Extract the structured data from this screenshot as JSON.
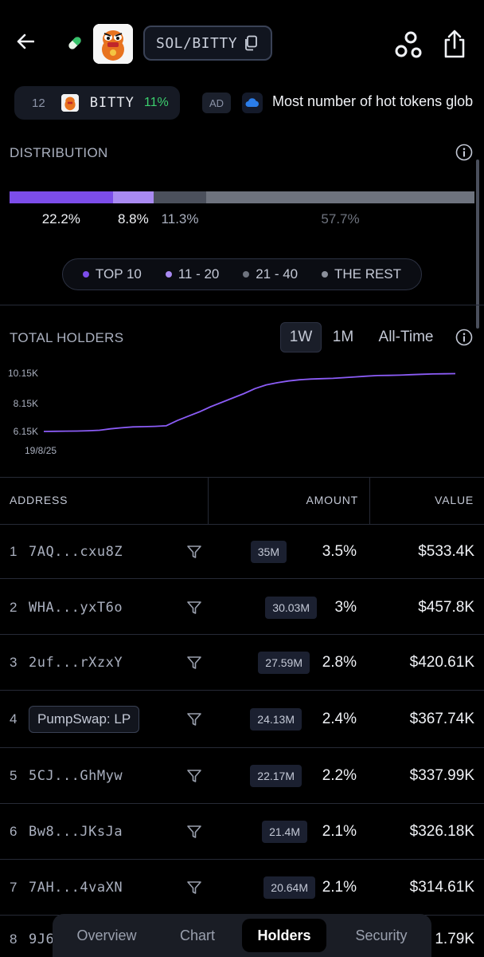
{
  "header": {
    "pair_label": "SOL/BITTY"
  },
  "ticker": {
    "rank": "12",
    "token": "BITTY",
    "change": "11%",
    "ad_label": "AD",
    "ad_text": "Most number of hot tokens glob"
  },
  "distribution": {
    "title": "DISTRIBUTION",
    "segments": [
      {
        "label": "TOP 10",
        "pct": "22.2%",
        "value": 22.2,
        "color": "#7c4dea"
      },
      {
        "label": "11 - 20",
        "pct": "8.8%",
        "value": 8.8,
        "color": "#a98af2"
      },
      {
        "label": "21 - 40",
        "pct": "11.3%",
        "value": 11.3,
        "color": "#4b505c"
      },
      {
        "label": "THE REST",
        "pct": "57.7%",
        "value": 57.7,
        "color": "#6e737e"
      }
    ]
  },
  "total_holders": {
    "title": "TOTAL HOLDERS",
    "ranges": [
      "1W",
      "1M",
      "All-Time"
    ],
    "active_range": "1W"
  },
  "chart_data": {
    "type": "line",
    "title": "TOTAL HOLDERS",
    "y_ticks": [
      "10.15K",
      "8.15K",
      "6.15K"
    ],
    "x_ticks": [
      "19/8/25"
    ],
    "ylim": [
      6150,
      10150
    ],
    "line_color": "#8b5cf6",
    "values": [
      6150,
      6160,
      6170,
      6180,
      6200,
      6230,
      6330,
      6400,
      6460,
      6480,
      6500,
      6540,
      6900,
      7200,
      7500,
      7850,
      8150,
      8450,
      8750,
      9100,
      9350,
      9500,
      9620,
      9700,
      9750,
      9780,
      9800,
      9850,
      9900,
      9950,
      9990,
      10000,
      10020,
      10050,
      10080,
      10100,
      10110,
      10120
    ]
  },
  "table": {
    "headers": {
      "address": "ADDRESS",
      "amount": "AMOUNT",
      "value": "VALUE"
    },
    "rows": [
      {
        "idx": "1",
        "address": "7AQ...cxu8Z",
        "amount": "35M",
        "pct": "3.5%",
        "value": "$533.4K"
      },
      {
        "idx": "2",
        "address": "WHA...yxT6o",
        "amount": "30.03M",
        "pct": "3%",
        "value": "$457.8K"
      },
      {
        "idx": "3",
        "address": "2uf...rXzxY",
        "amount": "27.59M",
        "pct": "2.8%",
        "value": "$420.61K"
      },
      {
        "idx": "4",
        "address": "PumpSwap: LP",
        "amount": "24.13M",
        "pct": "2.4%",
        "value": "$367.74K"
      },
      {
        "idx": "5",
        "address": "5CJ...GhMyw",
        "amount": "22.17M",
        "pct": "2.2%",
        "value": "$337.99K"
      },
      {
        "idx": "6",
        "address": "Bw8...JKsJa",
        "amount": "21.4M",
        "pct": "2.1%",
        "value": "$326.18K"
      },
      {
        "idx": "7",
        "address": "7AH...4vaXN",
        "amount": "20.64M",
        "pct": "2.1%",
        "value": "$314.61K"
      },
      {
        "idx": "8",
        "address": "9J6",
        "amount": "",
        "pct": "",
        "value": "1.79K"
      }
    ]
  },
  "bottom_nav": {
    "tabs": [
      "Overview",
      "Chart",
      "Holders",
      "Security"
    ],
    "active": "Holders"
  }
}
